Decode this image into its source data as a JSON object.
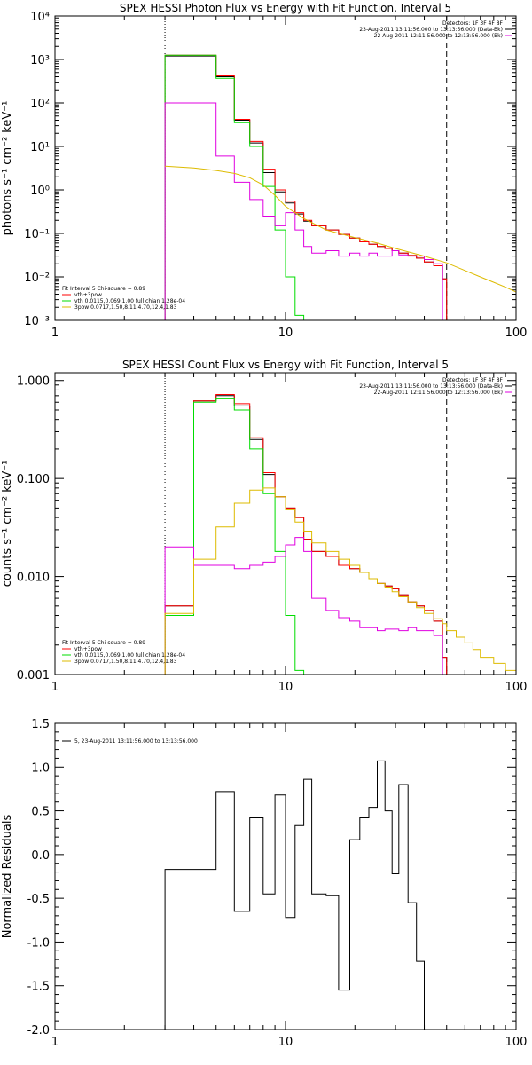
{
  "chart_data": [
    {
      "type": "line",
      "title": "SPEX HESSI Photon Flux vs Energy with Fit Function, Interval 5",
      "ylabel": "photons s⁻¹ cm⁻² keV⁻¹",
      "xlabel": "",
      "xscale": "log",
      "yscale": "log",
      "xlim": [
        1,
        100
      ],
      "ylim": [
        0.001,
        10000
      ],
      "xticks": [
        "1",
        "10",
        "100"
      ],
      "yticks": [
        "10⁻³",
        "10⁻²",
        "10⁻¹",
        "10⁰",
        "10¹",
        "10²",
        "10³",
        "10⁴"
      ],
      "header_lines": [
        "Detectors: 1F 3F 4F 8F",
        "23-Aug-2011 13:11:56.000 to 13:13:56.000 (Data-Bk)",
        "22-Aug-2011 12:11:56.000 to 12:13:56.000 (Bk)"
      ],
      "legend_lines": [
        "Fit Interval 5   Chi-square = 0.89",
        "vth+3pow",
        "vth 0.0115,0.069,1.00   full chian 1.28e-04",
        "3pow 0.0717,1.50,8.11,4.70,12.4,1.83"
      ],
      "vlines": [
        {
          "x": 3,
          "style": "dotted"
        },
        {
          "x": 50,
          "style": "dashed"
        }
      ],
      "series": [
        {
          "color": "#000000",
          "style": "step",
          "edges": [
            3,
            4,
            5,
            6,
            7,
            8,
            9,
            10,
            11,
            12,
            13,
            15,
            17,
            19,
            21,
            23,
            25,
            27,
            29,
            31,
            34,
            37,
            40,
            44,
            48,
            50
          ],
          "values": [
            1200,
            1200,
            400,
            40,
            12,
            2.5,
            0.9,
            0.5,
            0.28,
            0.19,
            0.15,
            0.12,
            0.095,
            0.078,
            0.064,
            0.056,
            0.05,
            0.045,
            0.04,
            0.035,
            0.031,
            0.027,
            0.022,
            0.018,
            0.009
          ]
        },
        {
          "color": "#ff0000",
          "style": "step",
          "edges": [
            3,
            4,
            5,
            6,
            7,
            8,
            9,
            10,
            11,
            12,
            13,
            15,
            17,
            19,
            21,
            23,
            25,
            27,
            29,
            31,
            34,
            37,
            40,
            44,
            48,
            50
          ],
          "values": [
            1250,
            1250,
            420,
            42,
            13,
            3,
            1,
            0.55,
            0.3,
            0.2,
            0.15,
            0.12,
            0.095,
            0.078,
            0.064,
            0.056,
            0.05,
            0.045,
            0.04,
            0.035,
            0.031,
            0.027,
            0.022,
            0.018,
            0.009
          ]
        },
        {
          "color": "#00dd00",
          "style": "step",
          "edges": [
            3,
            4,
            5,
            6,
            7,
            8,
            9,
            10,
            11,
            12
          ],
          "values": [
            1250,
            1250,
            370,
            35,
            10,
            1.2,
            0.12,
            0.01,
            0.0013
          ]
        },
        {
          "color": "#e000e0",
          "style": "step",
          "edges": [
            3,
            4,
            5,
            6,
            7,
            8,
            9,
            10,
            11,
            12,
            13,
            15,
            17,
            19,
            21,
            23,
            25,
            27,
            29,
            31,
            34,
            37,
            40,
            44,
            48,
            50
          ],
          "values": [
            100,
            100,
            6,
            1.5,
            0.6,
            0.25,
            0.15,
            0.3,
            0.12,
            0.05,
            0.035,
            0.04,
            0.03,
            0.035,
            0.03,
            0.035,
            0.03,
            0.03,
            0.04,
            0.032,
            0.03,
            0.03,
            0.025,
            0.02,
            0.001
          ]
        },
        {
          "color": "#ddbb00",
          "style": "line",
          "x": [
            3,
            4,
            5,
            6,
            7,
            8,
            9,
            10,
            12,
            15,
            20,
            25,
            30,
            40,
            50,
            60,
            70,
            80,
            90,
            100
          ],
          "y": [
            3.5,
            3.2,
            2.8,
            2.4,
            1.9,
            1.3,
            0.75,
            0.42,
            0.22,
            0.12,
            0.08,
            0.06,
            0.045,
            0.03,
            0.021,
            0.014,
            0.01,
            0.0075,
            0.0058,
            0.0045
          ]
        }
      ]
    },
    {
      "type": "line",
      "title": "SPEX HESSI Count Flux vs Energy with Fit Function, Interval 5",
      "ylabel": "counts s⁻¹ cm⁻² keV⁻¹",
      "xlabel": "",
      "xscale": "log",
      "yscale": "log",
      "xlim": [
        1,
        100
      ],
      "ylim": [
        0.001,
        1.2
      ],
      "xticks": [
        "1",
        "10",
        "100"
      ],
      "yticks": [
        "0.001",
        "0.010",
        "0.100",
        "1.000"
      ],
      "header_lines": [
        "Detectors: 1F 3F 4F 8F",
        "23-Aug-2011 13:11:56.000 to 13:13:56.000 (Data-Bk)",
        "22-Aug-2011 12:11:56.000 to 12:13:56.000 (Bk)"
      ],
      "legend_lines": [
        "Fit Interval 5   Chi-square = 0.89",
        "vth+3pow",
        "vth 0.0115,0.069,1.00   full chian 1.28e-04",
        "3pow 0.0717,1.50,8.11,4.70,12.4,1.83"
      ],
      "vlines": [
        {
          "x": 3,
          "style": "dotted"
        },
        {
          "x": 50,
          "style": "dashed"
        }
      ],
      "series": [
        {
          "color": "#000000",
          "style": "step",
          "edges": [
            3,
            4,
            5,
            6,
            7,
            8,
            9,
            10,
            11,
            12,
            13,
            15,
            17,
            19,
            21,
            23,
            25,
            27,
            29,
            31,
            34,
            37,
            40,
            44,
            48,
            50
          ],
          "values": [
            0.005,
            0.62,
            0.7,
            0.55,
            0.25,
            0.11,
            0.065,
            0.05,
            0.04,
            0.024,
            0.018,
            0.016,
            0.013,
            0.012,
            0.011,
            0.0095,
            0.0085,
            0.008,
            0.0075,
            0.0065,
            0.0055,
            0.005,
            0.0045,
            0.0035,
            0.0015
          ]
        },
        {
          "color": "#ff0000",
          "style": "step",
          "edges": [
            3,
            4,
            5,
            6,
            7,
            8,
            9,
            10,
            11,
            12,
            13,
            15,
            17,
            19,
            21,
            23,
            25,
            27,
            29,
            31,
            34,
            37,
            40,
            44,
            48,
            50
          ],
          "values": [
            0.005,
            0.62,
            0.72,
            0.58,
            0.26,
            0.115,
            0.065,
            0.05,
            0.04,
            0.024,
            0.018,
            0.016,
            0.013,
            0.012,
            0.011,
            0.0095,
            0.0085,
            0.008,
            0.0075,
            0.0065,
            0.0055,
            0.005,
            0.0045,
            0.0035,
            0.0015
          ]
        },
        {
          "color": "#00dd00",
          "style": "step",
          "edges": [
            3,
            4,
            5,
            6,
            7,
            8,
            9,
            10,
            11,
            12
          ],
          "values": [
            0.004,
            0.6,
            0.65,
            0.5,
            0.2,
            0.07,
            0.018,
            0.004,
            0.0011
          ]
        },
        {
          "color": "#e000e0",
          "style": "step",
          "edges": [
            3,
            4,
            5,
            6,
            7,
            8,
            9,
            10,
            11,
            12,
            13,
            15,
            17,
            19,
            21,
            23,
            25,
            27,
            29,
            31,
            34,
            37,
            40,
            44,
            48,
            50
          ],
          "values": [
            0.02,
            0.013,
            0.013,
            0.012,
            0.013,
            0.014,
            0.016,
            0.021,
            0.025,
            0.018,
            0.006,
            0.0045,
            0.0038,
            0.0035,
            0.003,
            0.003,
            0.0028,
            0.0029,
            0.0029,
            0.0028,
            0.003,
            0.0028,
            0.0028,
            0.0025,
            0.001
          ]
        },
        {
          "color": "#ddbb00",
          "style": "step",
          "edges": [
            3,
            4,
            5,
            6,
            7,
            8,
            9,
            10,
            11,
            12,
            13,
            15,
            17,
            19,
            21,
            23,
            25,
            27,
            29,
            31,
            34,
            37,
            40,
            44,
            48,
            50,
            55,
            60,
            65,
            70,
            80,
            90,
            100
          ],
          "values": [
            0.0042,
            0.015,
            0.032,
            0.056,
            0.076,
            0.08,
            0.065,
            0.048,
            0.036,
            0.029,
            0.022,
            0.018,
            0.015,
            0.013,
            0.011,
            0.0095,
            0.0085,
            0.0078,
            0.007,
            0.0062,
            0.0055,
            0.0048,
            0.0042,
            0.0037,
            0.0033,
            0.0028,
            0.0024,
            0.0021,
            0.0018,
            0.0015,
            0.0013,
            0.0011
          ]
        }
      ]
    },
    {
      "type": "line",
      "title": "",
      "ylabel": "Normalized Residuals",
      "xlabel": "",
      "xscale": "log",
      "yscale": "linear",
      "xlim": [
        1,
        100
      ],
      "ylim": [
        -2.0,
        1.5
      ],
      "xticks": [
        "1",
        "10",
        "100"
      ],
      "yticks": [
        "-2.0",
        "-1.5",
        "-1.0",
        "-0.5",
        "0.0",
        "0.5",
        "1.0",
        "1.5"
      ],
      "legend_lines": [
        "5, 23-Aug-2011 13:11:56.000 to 13:13:56.000"
      ],
      "series": [
        {
          "color": "#000000",
          "style": "step",
          "edges": [
            3,
            4,
            5,
            6,
            7,
            8,
            9,
            10,
            11,
            12,
            13,
            15,
            17,
            19,
            21,
            23,
            25,
            27,
            29,
            31,
            34,
            37,
            40,
            44,
            48,
            50
          ],
          "values": [
            -0.17,
            -0.17,
            0.72,
            -0.65,
            0.42,
            -0.45,
            0.68,
            -0.72,
            0.33,
            0.86,
            -0.45,
            -0.47,
            -1.55,
            0.17,
            0.42,
            0.54,
            1.07,
            0.5,
            -0.22,
            0.8,
            -0.55,
            -1.22,
            -2.0,
            -2.0,
            -2.0
          ]
        }
      ]
    }
  ]
}
